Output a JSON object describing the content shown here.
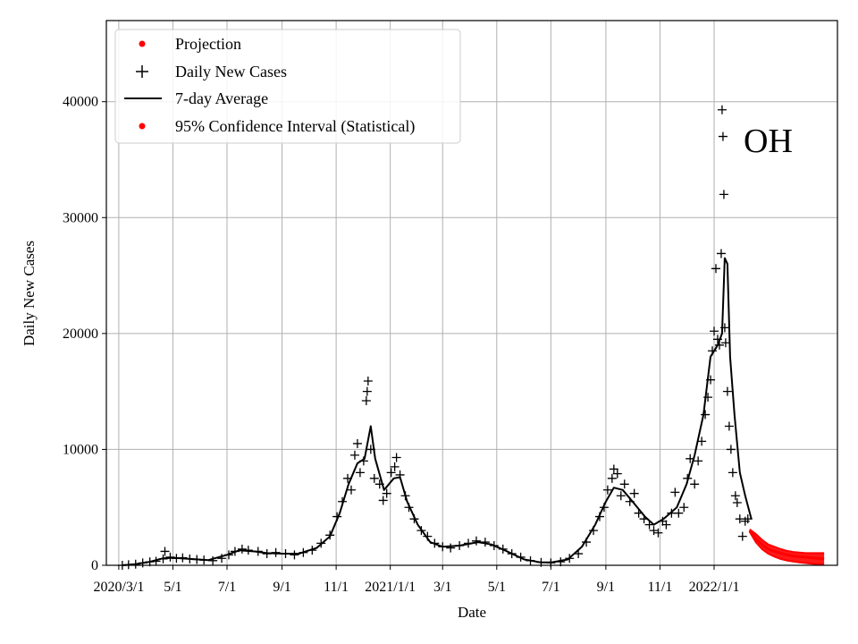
{
  "chart_data": {
    "type": "line",
    "xlabel": "Date",
    "ylabel": "Daily New Cases",
    "annotation": "OH",
    "grid": true,
    "legend_position": "top-left",
    "xlim": [
      "2020-02-16",
      "2022-05-20"
    ],
    "ylim": [
      0,
      47000
    ],
    "y_ticks": [
      0,
      10000,
      20000,
      30000,
      40000
    ],
    "x_ticks": [
      {
        "date": "2020-03-01",
        "label": "2020/3/1"
      },
      {
        "date": "2020-05-01",
        "label": "5/1"
      },
      {
        "date": "2020-07-01",
        "label": "7/1"
      },
      {
        "date": "2020-09-01",
        "label": "9/1"
      },
      {
        "date": "2020-11-01",
        "label": "11/1"
      },
      {
        "date": "2021-01-01",
        "label": "2021/1/1"
      },
      {
        "date": "2021-03-01",
        "label": "3/1"
      },
      {
        "date": "2021-05-01",
        "label": "5/1"
      },
      {
        "date": "2021-07-01",
        "label": "7/1"
      },
      {
        "date": "2021-09-01",
        "label": "9/1"
      },
      {
        "date": "2021-11-01",
        "label": "11/1"
      },
      {
        "date": "2022-01-01",
        "label": "2022/1/1"
      }
    ],
    "legend": [
      {
        "label": "Projection",
        "marker": "dot",
        "color": "#ff0000"
      },
      {
        "label": "Daily New Cases",
        "marker": "plus",
        "color": "#000000"
      },
      {
        "label": "7-day Average",
        "marker": "line",
        "color": "#000000"
      },
      {
        "label": "95% Confidence Interval (Statistical)",
        "marker": "dot",
        "color": "#ff0000"
      }
    ],
    "series": [
      {
        "name": "7-day Average",
        "color": "#000000",
        "points": [
          [
            "2020-03-05",
            0
          ],
          [
            "2020-03-20",
            100
          ],
          [
            "2020-04-05",
            300
          ],
          [
            "2020-04-20",
            600
          ],
          [
            "2020-05-01",
            650
          ],
          [
            "2020-05-20",
            550
          ],
          [
            "2020-06-10",
            450
          ],
          [
            "2020-07-01",
            900
          ],
          [
            "2020-07-15",
            1300
          ],
          [
            "2020-08-01",
            1200
          ],
          [
            "2020-08-15",
            1050
          ],
          [
            "2020-09-01",
            1000
          ],
          [
            "2020-09-20",
            1000
          ],
          [
            "2020-10-10",
            1500
          ],
          [
            "2020-10-25",
            2500
          ],
          [
            "2020-11-05",
            4500
          ],
          [
            "2020-11-15",
            7000
          ],
          [
            "2020-11-25",
            8800
          ],
          [
            "2020-12-03",
            9200
          ],
          [
            "2020-12-10",
            12000
          ],
          [
            "2020-12-15",
            9200
          ],
          [
            "2020-12-25",
            6500
          ],
          [
            "2021-01-05",
            7500
          ],
          [
            "2021-01-12",
            7600
          ],
          [
            "2021-01-20",
            5500
          ],
          [
            "2021-02-01",
            3500
          ],
          [
            "2021-02-15",
            2000
          ],
          [
            "2021-03-01",
            1600
          ],
          [
            "2021-03-20",
            1700
          ],
          [
            "2021-04-10",
            2000
          ],
          [
            "2021-04-25",
            1800
          ],
          [
            "2021-05-10",
            1300
          ],
          [
            "2021-06-01",
            500
          ],
          [
            "2021-06-20",
            250
          ],
          [
            "2021-07-01",
            250
          ],
          [
            "2021-07-20",
            500
          ],
          [
            "2021-08-05",
            1600
          ],
          [
            "2021-08-20",
            3500
          ],
          [
            "2021-09-01",
            5500
          ],
          [
            "2021-09-10",
            6700
          ],
          [
            "2021-09-20",
            6500
          ],
          [
            "2021-10-01",
            5500
          ],
          [
            "2021-10-15",
            4200
          ],
          [
            "2021-10-25",
            3500
          ],
          [
            "2021-11-05",
            4000
          ],
          [
            "2021-11-20",
            5000
          ],
          [
            "2021-12-01",
            7000
          ],
          [
            "2021-12-10",
            9500
          ],
          [
            "2021-12-20",
            13000
          ],
          [
            "2021-12-28",
            18000
          ],
          [
            "2022-01-05",
            19000
          ],
          [
            "2022-01-10",
            20000
          ],
          [
            "2022-01-13",
            26500
          ],
          [
            "2022-01-16",
            26000
          ],
          [
            "2022-01-19",
            18000
          ],
          [
            "2022-01-24",
            13000
          ],
          [
            "2022-01-30",
            8000
          ],
          [
            "2022-02-05",
            6000
          ],
          [
            "2022-02-12",
            4000
          ]
        ]
      },
      {
        "name": "Daily New Cases",
        "color": "#000000",
        "points": [
          [
            "2020-03-05",
            0
          ],
          [
            "2020-03-12",
            50
          ],
          [
            "2020-03-20",
            100
          ],
          [
            "2020-03-28",
            200
          ],
          [
            "2020-04-05",
            300
          ],
          [
            "2020-04-12",
            350
          ],
          [
            "2020-04-20",
            550
          ],
          [
            "2020-04-22",
            1200
          ],
          [
            "2020-04-28",
            700
          ],
          [
            "2020-05-05",
            600
          ],
          [
            "2020-05-12",
            650
          ],
          [
            "2020-05-20",
            550
          ],
          [
            "2020-05-28",
            500
          ],
          [
            "2020-06-05",
            450
          ],
          [
            "2020-06-15",
            400
          ],
          [
            "2020-06-25",
            600
          ],
          [
            "2020-07-03",
            900
          ],
          [
            "2020-07-10",
            1200
          ],
          [
            "2020-07-18",
            1400
          ],
          [
            "2020-07-25",
            1300
          ],
          [
            "2020-08-05",
            1200
          ],
          [
            "2020-08-15",
            1000
          ],
          [
            "2020-08-25",
            1100
          ],
          [
            "2020-09-05",
            1000
          ],
          [
            "2020-09-15",
            900
          ],
          [
            "2020-09-25",
            1100
          ],
          [
            "2020-10-05",
            1300
          ],
          [
            "2020-10-15",
            1900
          ],
          [
            "2020-10-25",
            2600
          ],
          [
            "2020-11-02",
            4200
          ],
          [
            "2020-11-08",
            5500
          ],
          [
            "2020-11-14",
            7500
          ],
          [
            "2020-11-18",
            6500
          ],
          [
            "2020-11-22",
            9500
          ],
          [
            "2020-11-25",
            10500
          ],
          [
            "2020-11-28",
            8000
          ],
          [
            "2020-12-02",
            9000
          ],
          [
            "2020-12-05",
            14200
          ],
          [
            "2020-12-06",
            15000
          ],
          [
            "2020-12-07",
            15900
          ],
          [
            "2020-12-10",
            10000
          ],
          [
            "2020-12-14",
            7500
          ],
          [
            "2020-12-20",
            7000
          ],
          [
            "2020-12-24",
            5600
          ],
          [
            "2020-12-28",
            6200
          ],
          [
            "2021-01-02",
            8000
          ],
          [
            "2021-01-06",
            8500
          ],
          [
            "2021-01-08",
            9300
          ],
          [
            "2021-01-12",
            7800
          ],
          [
            "2021-01-18",
            6000
          ],
          [
            "2021-01-22",
            5000
          ],
          [
            "2021-01-28",
            4000
          ],
          [
            "2021-02-05",
            3000
          ],
          [
            "2021-02-12",
            2500
          ],
          [
            "2021-02-20",
            1900
          ],
          [
            "2021-03-01",
            1600
          ],
          [
            "2021-03-10",
            1500
          ],
          [
            "2021-03-20",
            1700
          ],
          [
            "2021-03-30",
            1900
          ],
          [
            "2021-04-08",
            2100
          ],
          [
            "2021-04-18",
            2000
          ],
          [
            "2021-04-28",
            1700
          ],
          [
            "2021-05-08",
            1400
          ],
          [
            "2021-05-18",
            1000
          ],
          [
            "2021-05-28",
            700
          ],
          [
            "2021-06-08",
            400
          ],
          [
            "2021-06-20",
            250
          ],
          [
            "2021-07-01",
            200
          ],
          [
            "2021-07-12",
            300
          ],
          [
            "2021-07-22",
            600
          ],
          [
            "2021-08-01",
            1000
          ],
          [
            "2021-08-10",
            2000
          ],
          [
            "2021-08-18",
            3000
          ],
          [
            "2021-08-25",
            4200
          ],
          [
            "2021-08-30",
            5000
          ],
          [
            "2021-09-03",
            6500
          ],
          [
            "2021-09-08",
            7500
          ],
          [
            "2021-09-10",
            8300
          ],
          [
            "2021-09-14",
            7900
          ],
          [
            "2021-09-18",
            6000
          ],
          [
            "2021-09-22",
            7000
          ],
          [
            "2021-09-28",
            5500
          ],
          [
            "2021-10-03",
            6200
          ],
          [
            "2021-10-08",
            4500
          ],
          [
            "2021-10-14",
            4000
          ],
          [
            "2021-10-20",
            3500
          ],
          [
            "2021-10-25",
            3000
          ],
          [
            "2021-10-30",
            2800
          ],
          [
            "2021-11-04",
            3800
          ],
          [
            "2021-11-08",
            3500
          ],
          [
            "2021-11-14",
            4500
          ],
          [
            "2021-11-18",
            6300
          ],
          [
            "2021-11-22",
            4500
          ],
          [
            "2021-11-28",
            5000
          ],
          [
            "2021-12-02",
            7500
          ],
          [
            "2021-12-05",
            9200
          ],
          [
            "2021-12-10",
            7000
          ],
          [
            "2021-12-14",
            9000
          ],
          [
            "2021-12-18",
            10700
          ],
          [
            "2021-12-22",
            13000
          ],
          [
            "2021-12-25",
            14500
          ],
          [
            "2021-12-28",
            16000
          ],
          [
            "2021-12-30",
            18500
          ],
          [
            "2022-01-01",
            20200
          ],
          [
            "2022-01-03",
            25600
          ],
          [
            "2022-01-05",
            19500
          ],
          [
            "2022-01-07",
            19000
          ],
          [
            "2022-01-09",
            26900
          ],
          [
            "2022-01-10",
            39300
          ],
          [
            "2022-01-11",
            37000
          ],
          [
            "2022-01-12",
            32000
          ],
          [
            "2022-01-13",
            20500
          ],
          [
            "2022-01-14",
            19200
          ],
          [
            "2022-01-16",
            15000
          ],
          [
            "2022-01-18",
            12000
          ],
          [
            "2022-01-20",
            10000
          ],
          [
            "2022-01-22",
            8000
          ],
          [
            "2022-01-25",
            6000
          ],
          [
            "2022-01-27",
            5400
          ],
          [
            "2022-01-30",
            4000
          ],
          [
            "2022-02-02",
            2500
          ],
          [
            "2022-02-05",
            3800
          ],
          [
            "2022-02-08",
            4000
          ]
        ]
      },
      {
        "name": "Projection",
        "color": "#ff0000",
        "points": [
          [
            "2022-02-10",
            3000
          ],
          [
            "2022-02-17",
            2300
          ],
          [
            "2022-02-24",
            1800
          ],
          [
            "2022-03-03",
            1400
          ],
          [
            "2022-03-10",
            1200
          ],
          [
            "2022-03-17",
            1050
          ],
          [
            "2022-03-24",
            900
          ],
          [
            "2022-03-31",
            800
          ],
          [
            "2022-04-07",
            750
          ],
          [
            "2022-04-14",
            700
          ],
          [
            "2022-04-21",
            650
          ],
          [
            "2022-04-28",
            600
          ],
          [
            "2022-05-05",
            550
          ]
        ]
      },
      {
        "name": "95% Confidence Interval (Statistical)",
        "color": "#ff0000",
        "upper": [
          [
            "2022-02-10",
            3100
          ],
          [
            "2022-02-17",
            2700
          ],
          [
            "2022-02-24",
            2200
          ],
          [
            "2022-03-03",
            1800
          ],
          [
            "2022-03-10",
            1600
          ],
          [
            "2022-03-17",
            1400
          ],
          [
            "2022-03-24",
            1250
          ],
          [
            "2022-03-31",
            1150
          ],
          [
            "2022-04-07",
            1100
          ],
          [
            "2022-04-14",
            1050
          ],
          [
            "2022-04-21",
            1050
          ],
          [
            "2022-04-28",
            1050
          ],
          [
            "2022-05-05",
            1050
          ]
        ],
        "lower": [
          [
            "2022-02-10",
            2900
          ],
          [
            "2022-02-17",
            2000
          ],
          [
            "2022-02-24",
            1400
          ],
          [
            "2022-03-03",
            1000
          ],
          [
            "2022-03-10",
            750
          ],
          [
            "2022-03-17",
            550
          ],
          [
            "2022-03-24",
            420
          ],
          [
            "2022-03-31",
            330
          ],
          [
            "2022-04-07",
            250
          ],
          [
            "2022-04-14",
            190
          ],
          [
            "2022-04-21",
            140
          ],
          [
            "2022-04-28",
            110
          ],
          [
            "2022-05-05",
            90
          ]
        ]
      }
    ]
  }
}
